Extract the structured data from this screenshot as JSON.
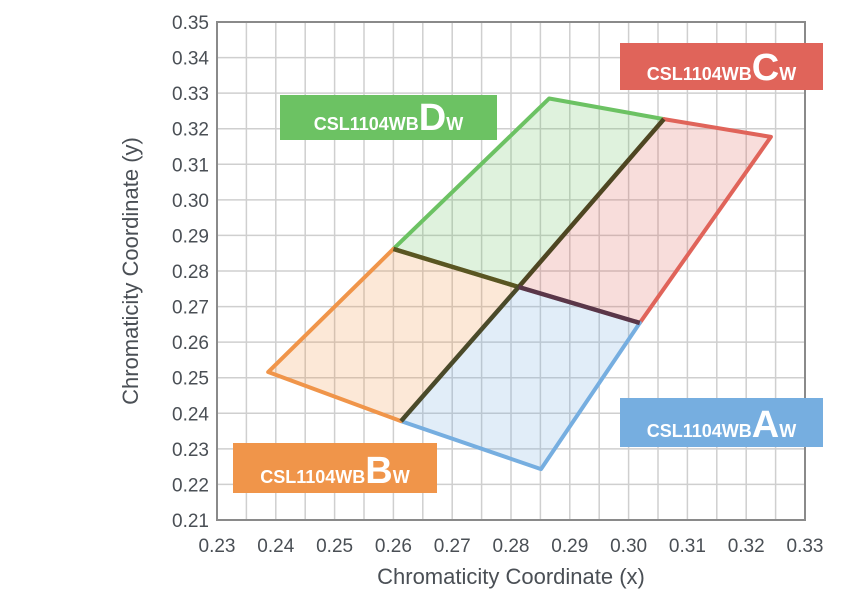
{
  "chart_data": {
    "type": "region",
    "x_label": "Chromaticity Coordinate (x)",
    "y_label": "Chromaticity Coordinate (y)",
    "xlim": [
      0.23,
      0.33
    ],
    "ylim": [
      0.21,
      0.35
    ],
    "xticks": [
      0.23,
      0.24,
      0.25,
      0.26,
      0.27,
      0.28,
      0.29,
      {
        "value": 0.3,
        "label": "0.30"
      },
      0.31,
      0.32,
      0.33
    ],
    "yticks": [
      0.21,
      0.22,
      0.23,
      0.24,
      0.25,
      0.26,
      0.27,
      0.28,
      0.29,
      {
        "value": 0.3,
        "label": "0.30"
      },
      0.31,
      0.32,
      0.33,
      0.34,
      0.35
    ],
    "x_minor_ticks": [
      0.235,
      0.245,
      0.255,
      0.265,
      0.275,
      0.285,
      0.295,
      0.305,
      0.315,
      0.325
    ],
    "grid": true,
    "series": [
      {
        "name": {
          "prefix": "CSL1104WB",
          "letter": "D",
          "suffix": "W"
        },
        "color": "#6cc263",
        "x": [
          0.26,
          0.2865,
          0.306,
          0.2813
        ],
        "y": [
          0.2862,
          0.3285,
          0.3227,
          0.2755
        ]
      },
      {
        "name": {
          "prefix": "CSL1104WB",
          "letter": "C",
          "suffix": "W"
        },
        "color": "#e0645a",
        "x": [
          0.306,
          0.3242,
          0.3019,
          0.2813
        ],
        "y": [
          0.3227,
          0.3177,
          0.2654,
          0.2755
        ]
      },
      {
        "name": {
          "prefix": "CSL1104WB",
          "letter": "A",
          "suffix": "W"
        },
        "color": "#76aee0",
        "x": [
          0.2813,
          0.3019,
          0.2851,
          0.2613
        ],
        "y": [
          0.2755,
          0.2654,
          0.2243,
          0.2378
        ]
      },
      {
        "name": {
          "prefix": "CSL1104WB",
          "letter": "B",
          "suffix": "W"
        },
        "color": "#f0954a",
        "x": [
          0.26,
          0.2813,
          0.2613,
          0.2387
        ],
        "y": [
          0.2862,
          0.2755,
          0.2378,
          0.2516
        ]
      }
    ]
  }
}
